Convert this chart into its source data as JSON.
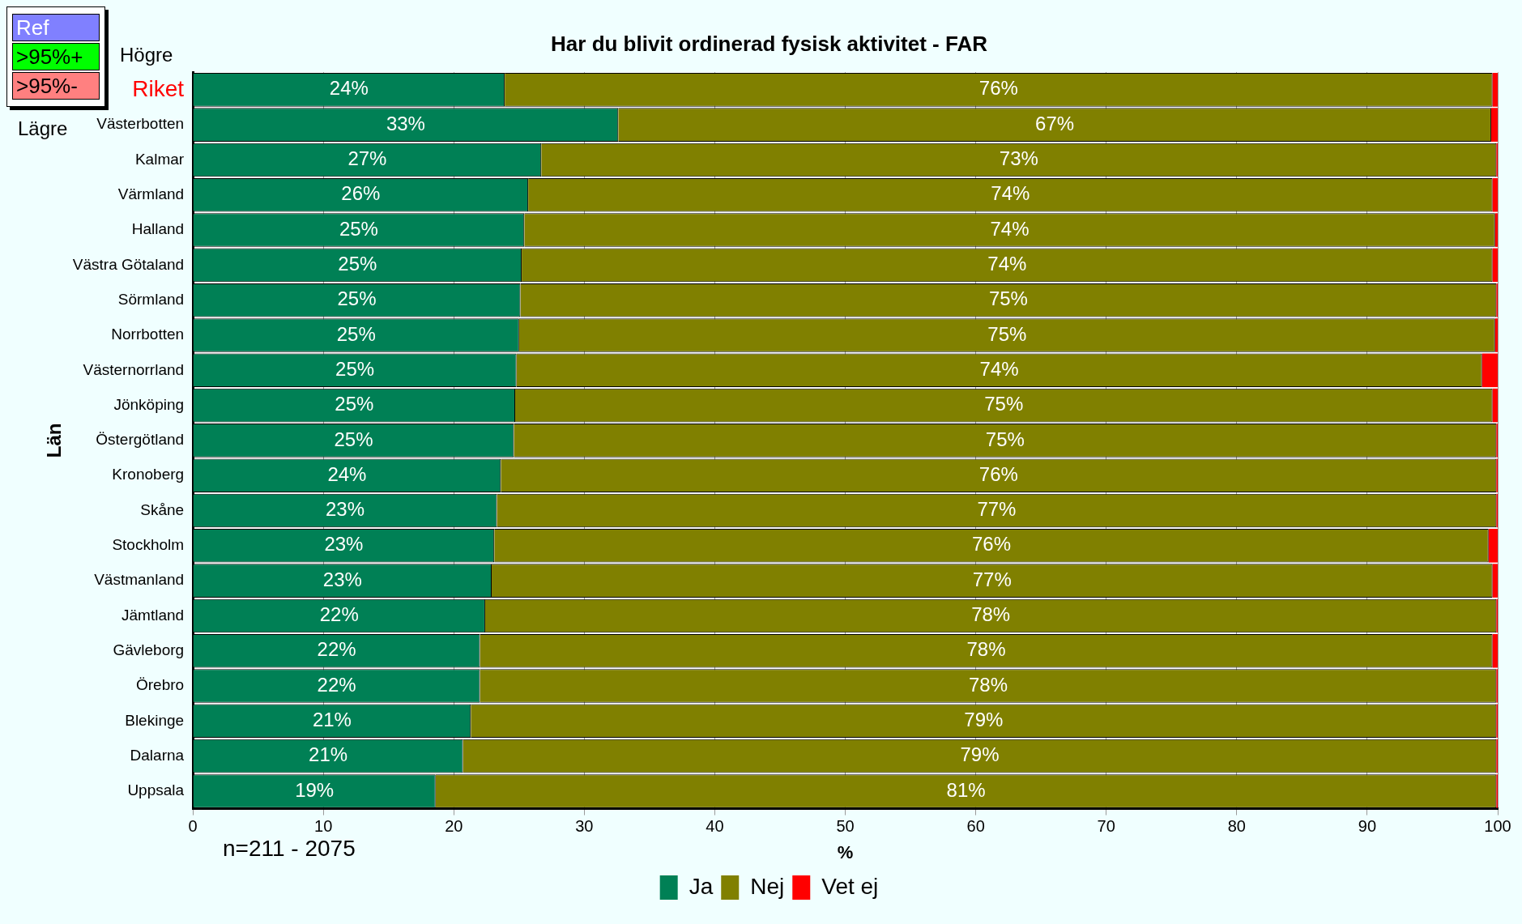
{
  "chart_data": {
    "type": "bar",
    "orientation": "horizontal",
    "stacked": true,
    "title": "Har du blivit ordinerad fysisk aktivitet - FAR",
    "xlabel": "%",
    "ylabel": "Län",
    "categories": [
      "Riket",
      "Västerbotten",
      "Kalmar",
      "Värmland",
      "Halland",
      "Västra Götaland",
      "Sörmland",
      "Norrbotten",
      "Västernorrland",
      "Jönköping",
      "Östergötland",
      "Kronoberg",
      "Skåne",
      "Stockholm",
      "Västmanland",
      "Jämtland",
      "Gävleborg",
      "Örebro",
      "Blekinge",
      "Dalarna",
      "Uppsala"
    ],
    "series": [
      {
        "name": "Ja",
        "color": "#008055",
        "values": [
          23.9,
          32.6,
          26.7,
          25.7,
          25.4,
          25.2,
          25.1,
          25.0,
          24.8,
          24.7,
          24.6,
          23.6,
          23.3,
          23.1,
          22.9,
          22.4,
          22.0,
          22.0,
          21.3,
          20.7,
          18.6
        ],
        "value_labels": [
          "24%",
          "33%",
          "27%",
          "26%",
          "25%",
          "25%",
          "25%",
          "25%",
          "25%",
          "25%",
          "25%",
          "24%",
          "23%",
          "23%",
          "23%",
          "22%",
          "22%",
          "22%",
          "21%",
          "21%",
          "19%"
        ]
      },
      {
        "name": "Nej",
        "color": "#808000",
        "values": [
          75.7,
          66.9,
          73.2,
          73.9,
          74.4,
          74.4,
          74.8,
          74.8,
          74.0,
          74.9,
          75.3,
          76.3,
          76.6,
          76.2,
          76.7,
          77.5,
          77.6,
          77.9,
          78.6,
          79.2,
          81.3
        ],
        "value_labels": [
          "76%",
          "67%",
          "73%",
          "74%",
          "74%",
          "74%",
          "75%",
          "75%",
          "74%",
          "75%",
          "75%",
          "76%",
          "77%",
          "76%",
          "77%",
          "78%",
          "78%",
          "78%",
          "79%",
          "79%",
          "81%"
        ]
      },
      {
        "name": "Vet ej",
        "color": "#ff0000",
        "values": [
          0.4,
          0.5,
          0.1,
          0.4,
          0.2,
          0.4,
          0.1,
          0.2,
          1.2,
          0.4,
          0.1,
          0.1,
          0.1,
          0.7,
          0.4,
          0.1,
          0.4,
          0.1,
          0.1,
          0.1,
          0.1
        ]
      }
    ],
    "xlim": [
      0,
      100
    ],
    "xticks": [
      0,
      10,
      20,
      30,
      40,
      50,
      60,
      70,
      80,
      90,
      100
    ],
    "grid": "x",
    "legend": "bottom",
    "annotations": [
      "Ref",
      ">95%+",
      ">95%-",
      "Högre",
      "Lägre",
      "n=211 - 2075"
    ]
  }
}
